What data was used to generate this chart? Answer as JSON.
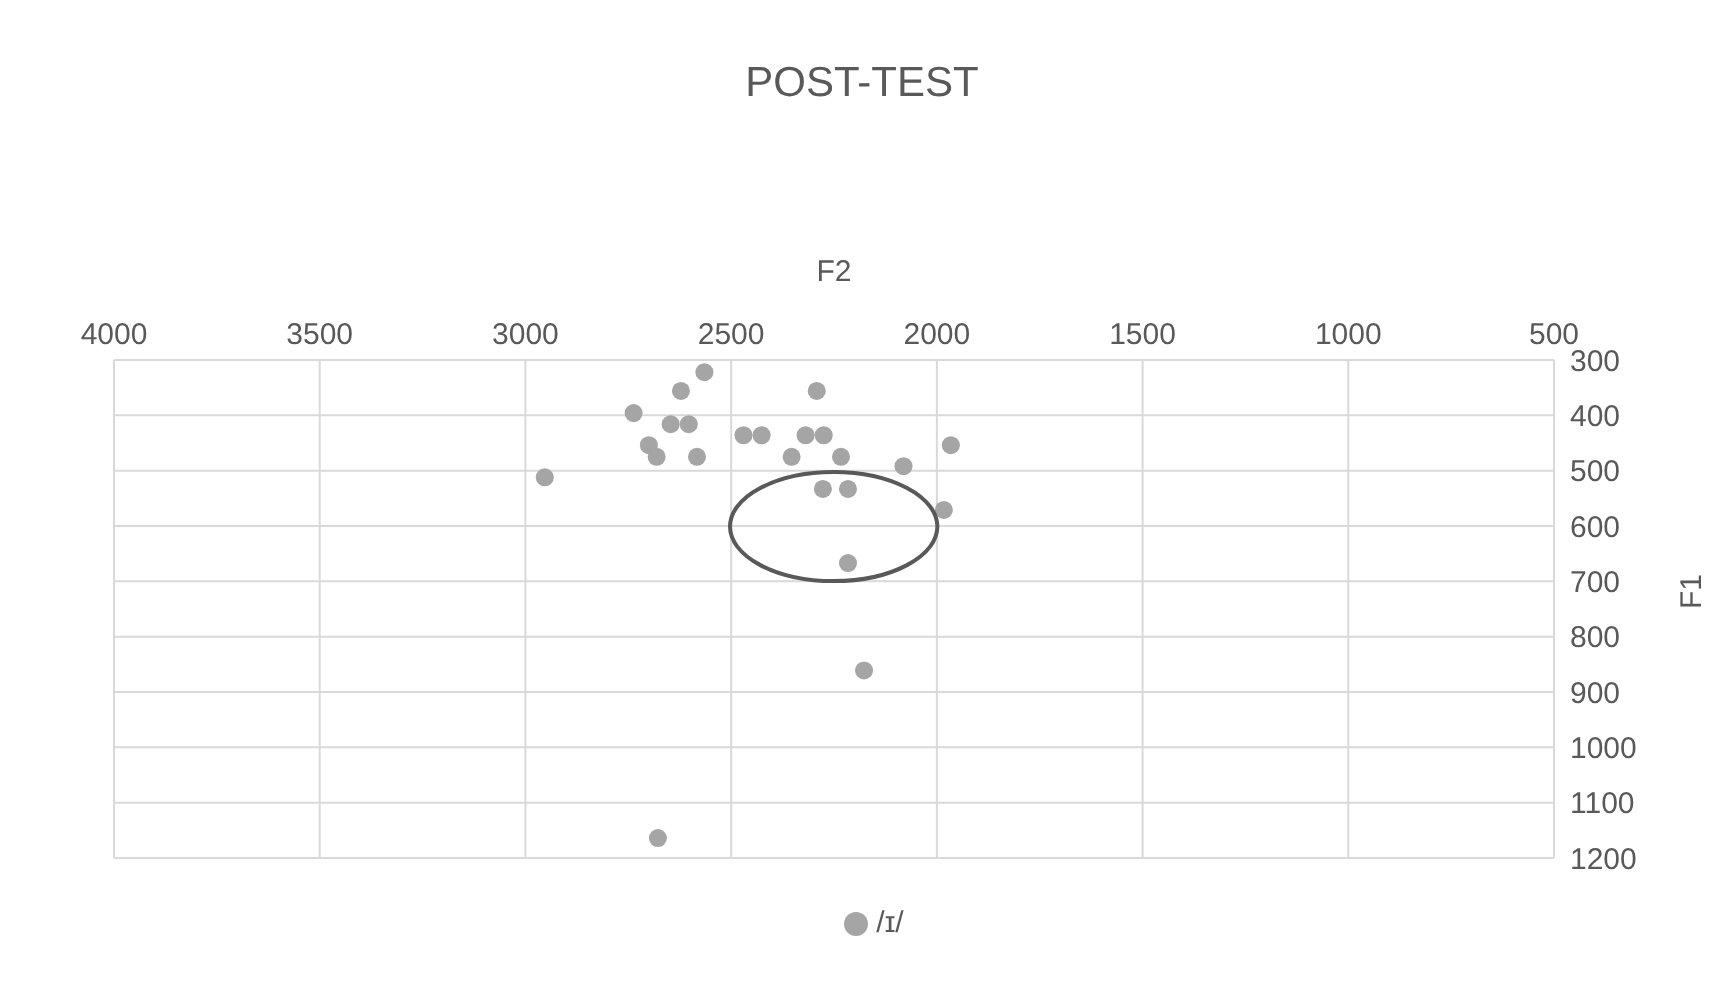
{
  "chart_data": {
    "type": "scatter",
    "title": "POST-TEST",
    "xlabel": "F2",
    "ylabel": "F1",
    "xlim": [
      4000,
      500
    ],
    "xticks": [
      4000,
      3500,
      3000,
      2500,
      2000,
      1500,
      1000,
      500
    ],
    "ylim": [
      1200,
      300
    ],
    "yticks": [
      300,
      400,
      500,
      600,
      700,
      800,
      900,
      1000,
      1100,
      1200
    ],
    "grid": true,
    "legend": "bottom",
    "marker": "circle",
    "series": [
      {
        "name": "/ɪ/",
        "color": "#a5a5a5",
        "x": [
          2565,
          2622,
          2737,
          2647,
          2603,
          2700,
          2681,
          2583,
          2953,
          2470,
          2426,
          2292,
          2319,
          2275,
          2353,
          2233,
          2277,
          2216,
          2081,
          1966,
          1983,
          2216,
          2177,
          2678
        ],
        "values": [
          322,
          356,
          396,
          416,
          416,
          454,
          475,
          475,
          512,
          436,
          436,
          356,
          436,
          436,
          475,
          475,
          533,
          533,
          492,
          454,
          571,
          667,
          861,
          1164
        ]
      }
    ]
  }
}
